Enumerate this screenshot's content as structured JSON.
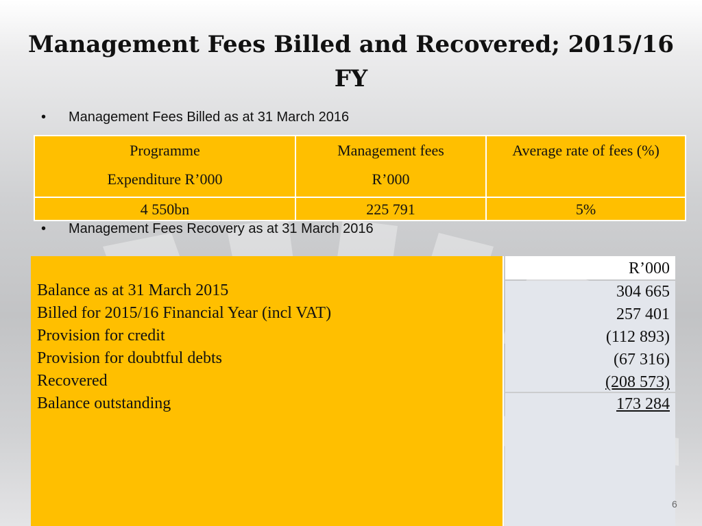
{
  "title": "Management Fees Billed and Recovered; 2015/16 FY",
  "bullets": {
    "billed": "Management Fees Billed as at 31 March 2016",
    "recovery": "Management Fees Recovery as at 31 March 2016"
  },
  "billed_table": {
    "headers": [
      {
        "line1": "Programme",
        "line2": "Expenditure R’000"
      },
      {
        "line1": "Management fees",
        "line2": "R’000"
      },
      {
        "line1": "Average rate of fees (%)",
        "line2": ""
      }
    ],
    "row": [
      "4 550bn",
      "225 791",
      "5%"
    ]
  },
  "recovery_table": {
    "unit": "R’000",
    "items": [
      {
        "label": "Balance as at 31 March 2015",
        "value": "304 665"
      },
      {
        "label": "Billed for 2015/16 Financial Year (incl VAT)",
        "value": "257 401"
      },
      {
        "label": "Provision for credit",
        "value": "(112 893)"
      },
      {
        "label": "Provision for doubtful debts",
        "value": "(67 316)"
      },
      {
        "label": "Recovered",
        "value": "(208 573)"
      },
      {
        "label": "Balance outstanding",
        "value": "173 284"
      }
    ]
  },
  "page_number": "6"
}
